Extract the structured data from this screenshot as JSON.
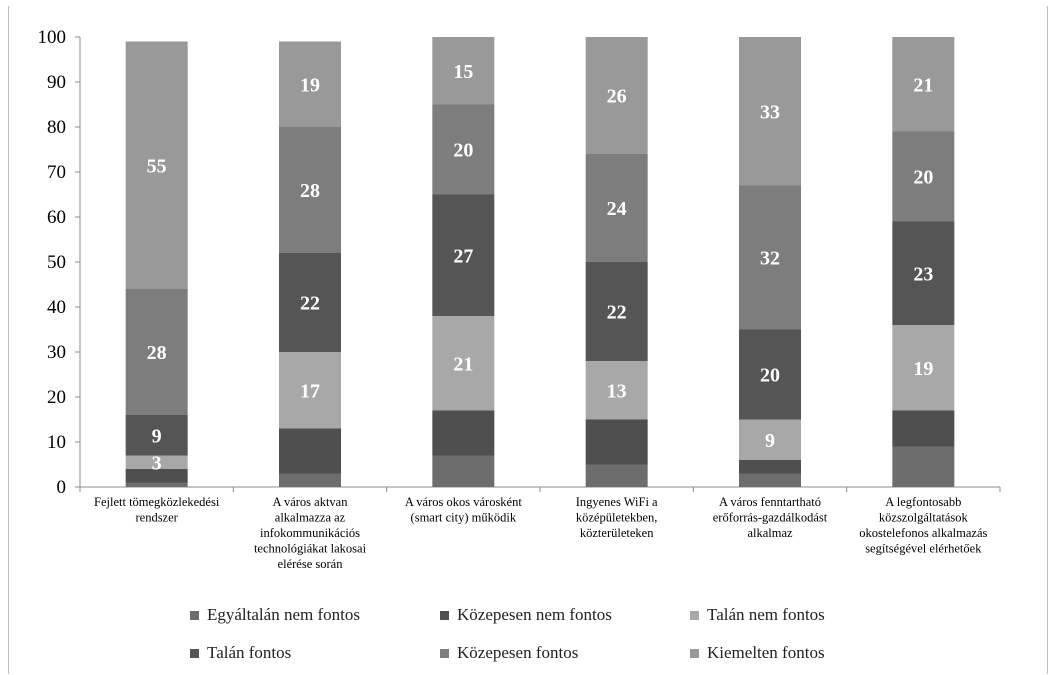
{
  "chart_data": {
    "type": "bar",
    "stacked": true,
    "ylim": [
      0,
      100
    ],
    "yticks": [
      0,
      10,
      20,
      30,
      40,
      50,
      60,
      70,
      80,
      90,
      100
    ],
    "categories": [
      [
        "Fejlett tömegközlekedési",
        "rendszer"
      ],
      [
        "A város aktvan",
        "alkalmazza az",
        "infokommunikációs",
        "technológiákat lakosai",
        "elérése során"
      ],
      [
        "A város okos városként",
        "(smart city) működik"
      ],
      [
        "Ingyenes WiFi a",
        "középületekben,",
        "közterületeken"
      ],
      [
        "A város fenntartható",
        "erőforrás-gazdálkodást",
        "alkalmaz"
      ],
      [
        "A legfontosabb",
        "közszolgáltatások",
        "okostelefonos alkalmazás",
        "segítségével elérhetőek"
      ]
    ],
    "series": [
      {
        "name": "Egyáltalán nem fontos",
        "color": "#6d6d6d",
        "values": [
          1,
          3,
          7,
          5,
          3,
          9
        ],
        "labels": [
          "",
          "",
          "",
          "",
          "",
          ""
        ]
      },
      {
        "name": "Közepesen nem fontos",
        "color": "#4f4f4f",
        "values": [
          3,
          10,
          10,
          10,
          3,
          8
        ],
        "labels": [
          "",
          "",
          "",
          "",
          "",
          ""
        ]
      },
      {
        "name": "Talán nem fontos",
        "color": "#a8a8a8",
        "values": [
          3,
          17,
          21,
          13,
          9,
          19
        ],
        "labels": [
          "3",
          "17",
          "21",
          "13",
          "9",
          "19"
        ]
      },
      {
        "name": "Talán fontos",
        "color": "#555555",
        "values": [
          9,
          22,
          27,
          22,
          20,
          23
        ],
        "labels": [
          "9",
          "22",
          "27",
          "22",
          "20",
          "23"
        ]
      },
      {
        "name": "Közepesen fontos",
        "color": "#7d7d7d",
        "values": [
          28,
          28,
          20,
          24,
          32,
          20
        ],
        "labels": [
          "28",
          "28",
          "20",
          "24",
          "32",
          "20"
        ]
      },
      {
        "name": "Kiemelten fontos",
        "color": "#999999",
        "values": [
          55,
          19,
          15,
          26,
          33,
          21
        ],
        "labels": [
          "55",
          "19",
          "15",
          "26",
          "33",
          "21"
        ]
      }
    ],
    "legend_position": "bottom",
    "grid": false
  },
  "legend": {
    "row1": [
      "Egyáltalán nem fontos",
      "Közepesen nem fontos",
      "Talán nem fontos"
    ],
    "row2": [
      "Talán fontos",
      "Közepesen fontos",
      "Kiemelten fontos"
    ],
    "colors1": [
      "#6d6d6d",
      "#4f4f4f",
      "#a8a8a8"
    ],
    "colors2": [
      "#555555",
      "#7d7d7d",
      "#999999"
    ]
  }
}
